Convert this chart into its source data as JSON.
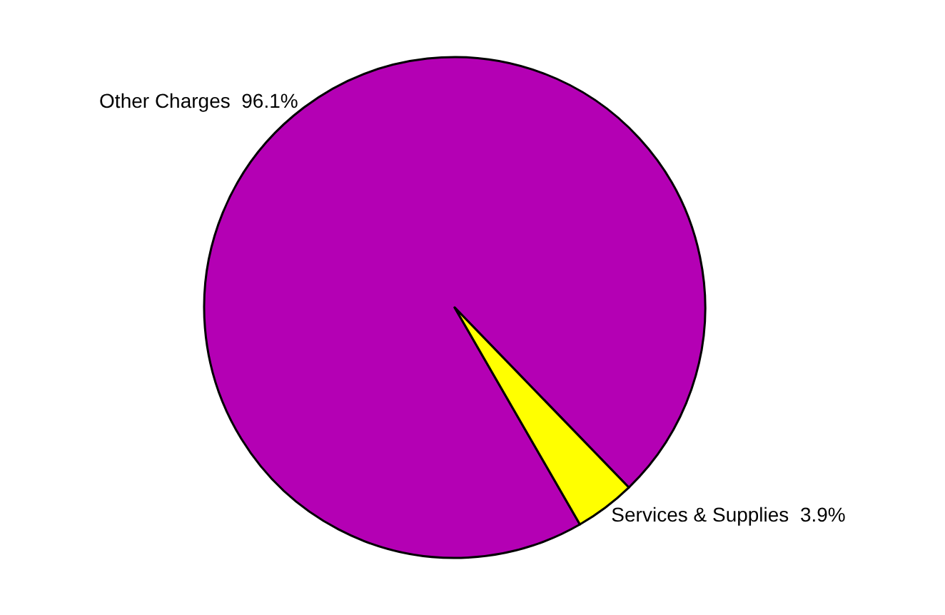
{
  "chart_data": {
    "type": "pie",
    "categories": [
      "Other Charges",
      "Services & Supplies"
    ],
    "values": [
      96.1,
      3.9
    ],
    "value_labels": [
      "96.1%",
      "3.9%"
    ],
    "colors": [
      "#b400b4",
      "#ffff00"
    ],
    "legend": false
  }
}
